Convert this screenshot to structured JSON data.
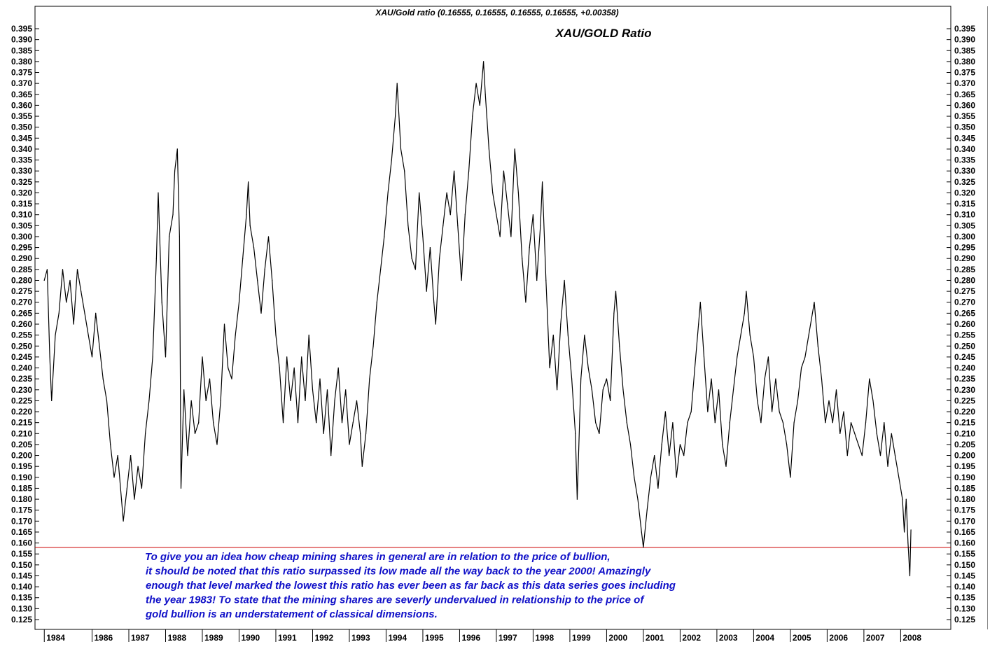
{
  "header": {
    "label": "XAU/Gold ratio (0.16555, 0.16555, 0.16555, 0.16555, +0.00358)"
  },
  "colors": {
    "line": "#000000",
    "reference_line": "#cc0000",
    "annotation": "#1010c8",
    "frame": "#000000"
  },
  "annotation": {
    "lines": [
      "To give you an idea how cheap mining shares in general are in relation to the price of bullion,",
      "it should be noted that this ratio surpassed its low made all the way back to the year 2000! Amazingly",
      "enough that level marked the lowest this ratio has ever been as far back as this data series goes including",
      "the year 1983! To state that the mining shares are severly undervalued in relationship to the price of",
      "gold bullion is an understatement of classical dimensions."
    ]
  },
  "chart_data": {
    "type": "line",
    "title": "XAU/GOLD Ratio",
    "xlabel": "",
    "ylabel": "",
    "xlim": [
      1983.9,
      2008.55
    ],
    "ylim": [
      0.12,
      0.4
    ],
    "grid": false,
    "y_ticks": [
      "0.125",
      "0.130",
      "0.135",
      "0.140",
      "0.145",
      "0.150",
      "0.155",
      "0.160",
      "0.165",
      "0.170",
      "0.175",
      "0.180",
      "0.185",
      "0.190",
      "0.195",
      "0.200",
      "0.205",
      "0.210",
      "0.215",
      "0.220",
      "0.225",
      "0.230",
      "0.235",
      "0.240",
      "0.245",
      "0.250",
      "0.255",
      "0.260",
      "0.265",
      "0.270",
      "0.275",
      "0.280",
      "0.285",
      "0.290",
      "0.295",
      "0.300",
      "0.305",
      "0.310",
      "0.315",
      "0.320",
      "0.325",
      "0.330",
      "0.335",
      "0.340",
      "0.345",
      "0.350",
      "0.355",
      "0.360",
      "0.365",
      "0.370",
      "0.375",
      "0.380",
      "0.385",
      "0.390",
      "0.395"
    ],
    "x_ticks": [
      {
        "label": "1984",
        "x": 1984.0
      },
      {
        "label": "1986",
        "x": 1985.3
      },
      {
        "label": "1987",
        "x": 1986.3
      },
      {
        "label": "1988",
        "x": 1987.3
      },
      {
        "label": "1989",
        "x": 1988.3
      },
      {
        "label": "1990",
        "x": 1989.3
      },
      {
        "label": "1991",
        "x": 1990.3
      },
      {
        "label": "1992",
        "x": 1991.3
      },
      {
        "label": "1993",
        "x": 1992.3
      },
      {
        "label": "1994",
        "x": 1993.3
      },
      {
        "label": "1995",
        "x": 1994.3
      },
      {
        "label": "1996",
        "x": 1995.3
      },
      {
        "label": "1997",
        "x": 1996.3
      },
      {
        "label": "1998",
        "x": 1997.3
      },
      {
        "label": "1999",
        "x": 1998.3
      },
      {
        "label": "2000",
        "x": 1999.3
      },
      {
        "label": "2001",
        "x": 2000.3
      },
      {
        "label": "2002",
        "x": 2001.3
      },
      {
        "label": "2003",
        "x": 2002.3
      },
      {
        "label": "2004",
        "x": 2003.3
      },
      {
        "label": "2005",
        "x": 2004.3
      },
      {
        "label": "2006",
        "x": 2005.3
      },
      {
        "label": "2007",
        "x": 2006.3
      },
      {
        "label": "2008",
        "x": 2007.3
      }
    ],
    "reference_line": {
      "y": 0.158
    },
    "series": [
      {
        "values": [
          [
            1984.0,
            0.28
          ],
          [
            1984.08,
            0.285
          ],
          [
            1984.15,
            0.245
          ],
          [
            1984.2,
            0.225
          ],
          [
            1984.3,
            0.255
          ],
          [
            1984.4,
            0.265
          ],
          [
            1984.5,
            0.285
          ],
          [
            1984.6,
            0.27
          ],
          [
            1984.7,
            0.28
          ],
          [
            1984.8,
            0.26
          ],
          [
            1984.9,
            0.285
          ],
          [
            1985.0,
            0.275
          ],
          [
            1985.1,
            0.265
          ],
          [
            1985.2,
            0.255
          ],
          [
            1985.3,
            0.245
          ],
          [
            1985.4,
            0.265
          ],
          [
            1985.5,
            0.25
          ],
          [
            1985.6,
            0.235
          ],
          [
            1985.7,
            0.225
          ],
          [
            1985.8,
            0.205
          ],
          [
            1985.9,
            0.19
          ],
          [
            1986.0,
            0.2
          ],
          [
            1986.1,
            0.18
          ],
          [
            1986.15,
            0.17
          ],
          [
            1986.25,
            0.185
          ],
          [
            1986.35,
            0.2
          ],
          [
            1986.45,
            0.18
          ],
          [
            1986.55,
            0.195
          ],
          [
            1986.65,
            0.185
          ],
          [
            1986.75,
            0.21
          ],
          [
            1986.85,
            0.225
          ],
          [
            1986.95,
            0.245
          ],
          [
            1987.05,
            0.29
          ],
          [
            1987.1,
            0.32
          ],
          [
            1987.2,
            0.27
          ],
          [
            1987.3,
            0.245
          ],
          [
            1987.4,
            0.3
          ],
          [
            1987.5,
            0.31
          ],
          [
            1987.55,
            0.33
          ],
          [
            1987.62,
            0.34
          ],
          [
            1987.68,
            0.3
          ],
          [
            1987.72,
            0.185
          ],
          [
            1987.8,
            0.23
          ],
          [
            1987.9,
            0.2
          ],
          [
            1988.0,
            0.225
          ],
          [
            1988.1,
            0.21
          ],
          [
            1988.2,
            0.215
          ],
          [
            1988.3,
            0.245
          ],
          [
            1988.4,
            0.225
          ],
          [
            1988.5,
            0.235
          ],
          [
            1988.6,
            0.215
          ],
          [
            1988.7,
            0.205
          ],
          [
            1988.8,
            0.225
          ],
          [
            1988.9,
            0.26
          ],
          [
            1989.0,
            0.24
          ],
          [
            1989.1,
            0.235
          ],
          [
            1989.2,
            0.255
          ],
          [
            1989.3,
            0.27
          ],
          [
            1989.4,
            0.29
          ],
          [
            1989.5,
            0.31
          ],
          [
            1989.55,
            0.325
          ],
          [
            1989.6,
            0.305
          ],
          [
            1989.7,
            0.295
          ],
          [
            1989.8,
            0.28
          ],
          [
            1989.9,
            0.265
          ],
          [
            1990.0,
            0.285
          ],
          [
            1990.1,
            0.3
          ],
          [
            1990.2,
            0.28
          ],
          [
            1990.3,
            0.255
          ],
          [
            1990.4,
            0.24
          ],
          [
            1990.5,
            0.215
          ],
          [
            1990.6,
            0.245
          ],
          [
            1990.7,
            0.225
          ],
          [
            1990.8,
            0.24
          ],
          [
            1990.9,
            0.215
          ],
          [
            1991.0,
            0.245
          ],
          [
            1991.1,
            0.225
          ],
          [
            1991.2,
            0.255
          ],
          [
            1991.3,
            0.23
          ],
          [
            1991.4,
            0.215
          ],
          [
            1991.5,
            0.235
          ],
          [
            1991.6,
            0.21
          ],
          [
            1991.7,
            0.23
          ],
          [
            1991.8,
            0.2
          ],
          [
            1991.9,
            0.225
          ],
          [
            1992.0,
            0.24
          ],
          [
            1992.1,
            0.215
          ],
          [
            1992.2,
            0.23
          ],
          [
            1992.3,
            0.205
          ],
          [
            1992.4,
            0.215
          ],
          [
            1992.5,
            0.225
          ],
          [
            1992.6,
            0.21
          ],
          [
            1992.65,
            0.195
          ],
          [
            1992.75,
            0.21
          ],
          [
            1992.85,
            0.235
          ],
          [
            1992.95,
            0.25
          ],
          [
            1993.05,
            0.27
          ],
          [
            1993.15,
            0.285
          ],
          [
            1993.25,
            0.3
          ],
          [
            1993.35,
            0.32
          ],
          [
            1993.45,
            0.335
          ],
          [
            1993.55,
            0.355
          ],
          [
            1993.6,
            0.37
          ],
          [
            1993.7,
            0.34
          ],
          [
            1993.8,
            0.33
          ],
          [
            1993.9,
            0.305
          ],
          [
            1994.0,
            0.29
          ],
          [
            1994.1,
            0.285
          ],
          [
            1994.2,
            0.32
          ],
          [
            1994.3,
            0.3
          ],
          [
            1994.4,
            0.275
          ],
          [
            1994.5,
            0.295
          ],
          [
            1994.6,
            0.27
          ],
          [
            1994.65,
            0.26
          ],
          [
            1994.75,
            0.29
          ],
          [
            1994.85,
            0.305
          ],
          [
            1994.95,
            0.32
          ],
          [
            1995.05,
            0.31
          ],
          [
            1995.15,
            0.33
          ],
          [
            1995.25,
            0.305
          ],
          [
            1995.35,
            0.28
          ],
          [
            1995.45,
            0.31
          ],
          [
            1995.55,
            0.33
          ],
          [
            1995.65,
            0.355
          ],
          [
            1995.75,
            0.37
          ],
          [
            1995.85,
            0.36
          ],
          [
            1995.95,
            0.38
          ],
          [
            1996.0,
            0.365
          ],
          [
            1996.1,
            0.34
          ],
          [
            1996.2,
            0.32
          ],
          [
            1996.3,
            0.31
          ],
          [
            1996.4,
            0.3
          ],
          [
            1996.5,
            0.33
          ],
          [
            1996.6,
            0.315
          ],
          [
            1996.7,
            0.3
          ],
          [
            1996.8,
            0.34
          ],
          [
            1996.9,
            0.32
          ],
          [
            1997.0,
            0.29
          ],
          [
            1997.1,
            0.27
          ],
          [
            1997.2,
            0.295
          ],
          [
            1997.3,
            0.31
          ],
          [
            1997.4,
            0.28
          ],
          [
            1997.5,
            0.305
          ],
          [
            1997.55,
            0.325
          ],
          [
            1997.65,
            0.28
          ],
          [
            1997.75,
            0.24
          ],
          [
            1997.85,
            0.255
          ],
          [
            1997.95,
            0.23
          ],
          [
            1998.05,
            0.26
          ],
          [
            1998.15,
            0.28
          ],
          [
            1998.25,
            0.255
          ],
          [
            1998.35,
            0.235
          ],
          [
            1998.45,
            0.21
          ],
          [
            1998.5,
            0.18
          ],
          [
            1998.6,
            0.235
          ],
          [
            1998.7,
            0.255
          ],
          [
            1998.8,
            0.24
          ],
          [
            1998.9,
            0.23
          ],
          [
            1999.0,
            0.215
          ],
          [
            1999.1,
            0.21
          ],
          [
            1999.2,
            0.23
          ],
          [
            1999.3,
            0.235
          ],
          [
            1999.4,
            0.225
          ],
          [
            1999.5,
            0.265
          ],
          [
            1999.55,
            0.275
          ],
          [
            1999.65,
            0.25
          ],
          [
            1999.75,
            0.23
          ],
          [
            1999.85,
            0.215
          ],
          [
            1999.95,
            0.205
          ],
          [
            2000.05,
            0.19
          ],
          [
            2000.15,
            0.18
          ],
          [
            2000.25,
            0.165
          ],
          [
            2000.3,
            0.158
          ],
          [
            2000.4,
            0.175
          ],
          [
            2000.5,
            0.19
          ],
          [
            2000.6,
            0.2
          ],
          [
            2000.7,
            0.185
          ],
          [
            2000.8,
            0.205
          ],
          [
            2000.9,
            0.22
          ],
          [
            2001.0,
            0.2
          ],
          [
            2001.1,
            0.215
          ],
          [
            2001.2,
            0.19
          ],
          [
            2001.3,
            0.205
          ],
          [
            2001.4,
            0.2
          ],
          [
            2001.5,
            0.215
          ],
          [
            2001.6,
            0.22
          ],
          [
            2001.7,
            0.24
          ],
          [
            2001.8,
            0.26
          ],
          [
            2001.85,
            0.27
          ],
          [
            2001.95,
            0.245
          ],
          [
            2002.05,
            0.22
          ],
          [
            2002.15,
            0.235
          ],
          [
            2002.25,
            0.215
          ],
          [
            2002.35,
            0.23
          ],
          [
            2002.45,
            0.205
          ],
          [
            2002.55,
            0.195
          ],
          [
            2002.65,
            0.215
          ],
          [
            2002.75,
            0.23
          ],
          [
            2002.85,
            0.245
          ],
          [
            2002.95,
            0.255
          ],
          [
            2003.05,
            0.265
          ],
          [
            2003.1,
            0.275
          ],
          [
            2003.2,
            0.255
          ],
          [
            2003.3,
            0.245
          ],
          [
            2003.4,
            0.225
          ],
          [
            2003.5,
            0.215
          ],
          [
            2003.6,
            0.235
          ],
          [
            2003.7,
            0.245
          ],
          [
            2003.8,
            0.22
          ],
          [
            2003.9,
            0.235
          ],
          [
            2004.0,
            0.22
          ],
          [
            2004.1,
            0.215
          ],
          [
            2004.2,
            0.205
          ],
          [
            2004.3,
            0.19
          ],
          [
            2004.4,
            0.215
          ],
          [
            2004.5,
            0.225
          ],
          [
            2004.6,
            0.24
          ],
          [
            2004.7,
            0.245
          ],
          [
            2004.8,
            0.255
          ],
          [
            2004.9,
            0.265
          ],
          [
            2004.95,
            0.27
          ],
          [
            2005.05,
            0.25
          ],
          [
            2005.15,
            0.235
          ],
          [
            2005.25,
            0.215
          ],
          [
            2005.35,
            0.225
          ],
          [
            2005.45,
            0.215
          ],
          [
            2005.55,
            0.23
          ],
          [
            2005.65,
            0.21
          ],
          [
            2005.75,
            0.22
          ],
          [
            2005.85,
            0.2
          ],
          [
            2005.95,
            0.215
          ],
          [
            2006.05,
            0.21
          ],
          [
            2006.15,
            0.205
          ],
          [
            2006.25,
            0.2
          ],
          [
            2006.35,
            0.215
          ],
          [
            2006.45,
            0.235
          ],
          [
            2006.55,
            0.225
          ],
          [
            2006.65,
            0.21
          ],
          [
            2006.75,
            0.2
          ],
          [
            2006.85,
            0.215
          ],
          [
            2006.95,
            0.195
          ],
          [
            2007.05,
            0.21
          ],
          [
            2007.15,
            0.2
          ],
          [
            2007.25,
            0.19
          ],
          [
            2007.35,
            0.18
          ],
          [
            2007.4,
            0.165
          ],
          [
            2007.45,
            0.18
          ],
          [
            2007.5,
            0.16
          ],
          [
            2007.55,
            0.145
          ],
          [
            2007.58,
            0.166
          ]
        ]
      }
    ]
  }
}
